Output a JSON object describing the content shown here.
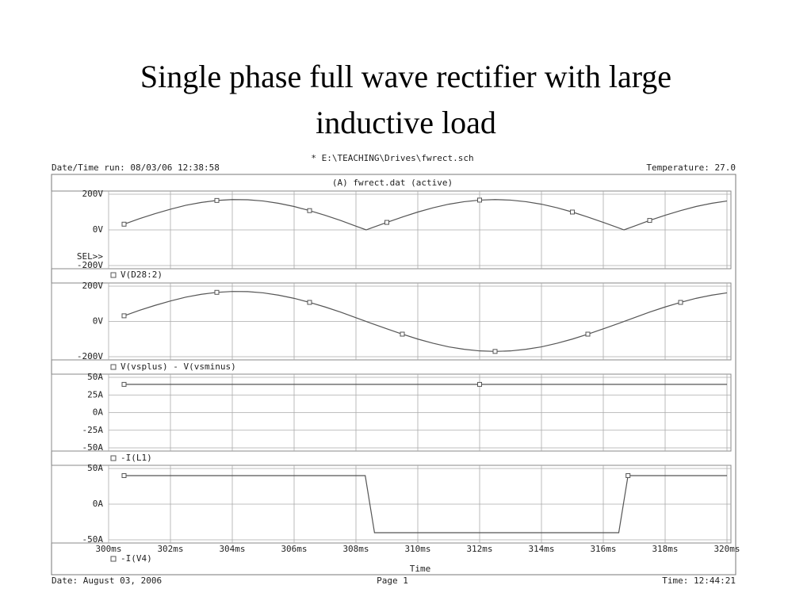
{
  "slide_title": "Single phase full wave rectifier with large inductive load",
  "header": {
    "file": "* E:\\TEACHING\\Drives\\fwrect.sch",
    "run": "Date/Time run: 08/03/06 12:38:58",
    "temperature": "Temperature: 27.0",
    "plot_title": "(A) fwrect.dat (active)",
    "selector": "SEL>>"
  },
  "footer": {
    "date": "Date: August 03, 2006",
    "page": "Page 1",
    "time": "Time: 12:44:21"
  },
  "chart_data": [
    {
      "type": "line",
      "x": [
        300.5,
        301,
        301.5,
        302,
        302.5,
        303,
        303.5,
        304,
        304.5,
        305,
        305.5,
        306,
        306.5,
        307,
        307.5,
        308,
        308.33,
        308.5,
        309,
        309.5,
        310,
        310.5,
        311,
        311.5,
        312,
        312.5,
        313,
        313.5,
        314,
        314.5,
        315,
        315.5,
        316,
        316.5,
        316.67,
        317,
        317.5,
        318,
        318.5,
        319,
        319.5,
        320
      ],
      "series": [
        {
          "name": "V(D28:2)",
          "color": "#555555",
          "values": [
            32,
            63,
            91,
            116,
            138,
            154,
            165,
            170,
            169,
            162,
            149,
            131,
            108,
            82,
            53,
            21,
            0,
            11,
            42,
            72,
            100,
            124,
            144,
            158,
            167,
            170,
            167,
            158,
            144,
            124,
            100,
            72,
            42,
            11,
            0,
            21,
            53,
            82,
            108,
            131,
            149,
            162
          ]
        }
      ],
      "ylim": [
        -200,
        200
      ],
      "yticks": [
        {
          "value": 200,
          "label": "200V"
        },
        {
          "value": 0,
          "label": "0V"
        },
        {
          "value": -200,
          "label": "-200V"
        }
      ],
      "grid": true
    },
    {
      "type": "line",
      "x": [
        300.5,
        301,
        301.5,
        302,
        302.5,
        303,
        303.5,
        304,
        304.5,
        305,
        305.5,
        306,
        306.5,
        307,
        307.5,
        308,
        308.5,
        309,
        309.5,
        310,
        310.5,
        311,
        311.5,
        312,
        312.5,
        313,
        313.5,
        314,
        314.5,
        315,
        315.5,
        316,
        316.5,
        317,
        317.5,
        318,
        318.5,
        319,
        319.5,
        320
      ],
      "series": [
        {
          "name": "V(vsplus) - V(vsminus)",
          "color": "#555555",
          "values": [
            32,
            63,
            91,
            116,
            138,
            154,
            165,
            170,
            169,
            162,
            149,
            131,
            108,
            82,
            53,
            21,
            -11,
            -42,
            -72,
            -100,
            -124,
            -144,
            -158,
            -167,
            -170,
            -167,
            -158,
            -144,
            -124,
            -100,
            -72,
            -42,
            -11,
            21,
            53,
            82,
            108,
            131,
            149,
            162
          ]
        }
      ],
      "ylim": [
        -200,
        200
      ],
      "yticks": [
        {
          "value": 200,
          "label": "200V"
        },
        {
          "value": 0,
          "label": "0V"
        },
        {
          "value": -200,
          "label": "-200V"
        }
      ],
      "grid": true
    },
    {
      "type": "line",
      "x": [
        300.5,
        302,
        304,
        306,
        308,
        310,
        312,
        314,
        316,
        318,
        320
      ],
      "series": [
        {
          "name": "-I(L1)",
          "color": "#555555",
          "values": [
            40,
            40,
            40,
            40,
            40,
            40,
            40,
            40,
            40,
            40,
            40
          ]
        }
      ],
      "ylim": [
        -50,
        50
      ],
      "yticks": [
        {
          "value": 50,
          "label": "50A"
        },
        {
          "value": 25,
          "label": "25A"
        },
        {
          "value": 0,
          "label": "0A"
        },
        {
          "value": -25,
          "label": "-25A"
        },
        {
          "value": -50,
          "label": "-50A"
        }
      ],
      "grid": true
    },
    {
      "type": "line",
      "x": [
        300.5,
        304,
        308.3,
        308.6,
        312,
        316.5,
        316.8,
        320
      ],
      "series": [
        {
          "name": "-I(V4)",
          "color": "#555555",
          "values": [
            40,
            40,
            40,
            -40,
            -40,
            -40,
            40,
            40
          ]
        }
      ],
      "ylim": [
        -50,
        50
      ],
      "yticks": [
        {
          "value": 50,
          "label": "50A"
        },
        {
          "value": 0,
          "label": "0A"
        },
        {
          "value": -50,
          "label": "-50A"
        }
      ],
      "xlim": [
        300,
        320
      ],
      "xticks": [
        {
          "value": 300,
          "label": "300ms"
        },
        {
          "value": 302,
          "label": "302ms"
        },
        {
          "value": 304,
          "label": "304ms"
        },
        {
          "value": 306,
          "label": "306ms"
        },
        {
          "value": 308,
          "label": "308ms"
        },
        {
          "value": 310,
          "label": "310ms"
        },
        {
          "value": 312,
          "label": "312ms"
        },
        {
          "value": 314,
          "label": "314ms"
        },
        {
          "value": 316,
          "label": "316ms"
        },
        {
          "value": 318,
          "label": "318ms"
        },
        {
          "value": 320,
          "label": "320ms"
        }
      ],
      "xlabel": "Time",
      "grid": true
    }
  ]
}
